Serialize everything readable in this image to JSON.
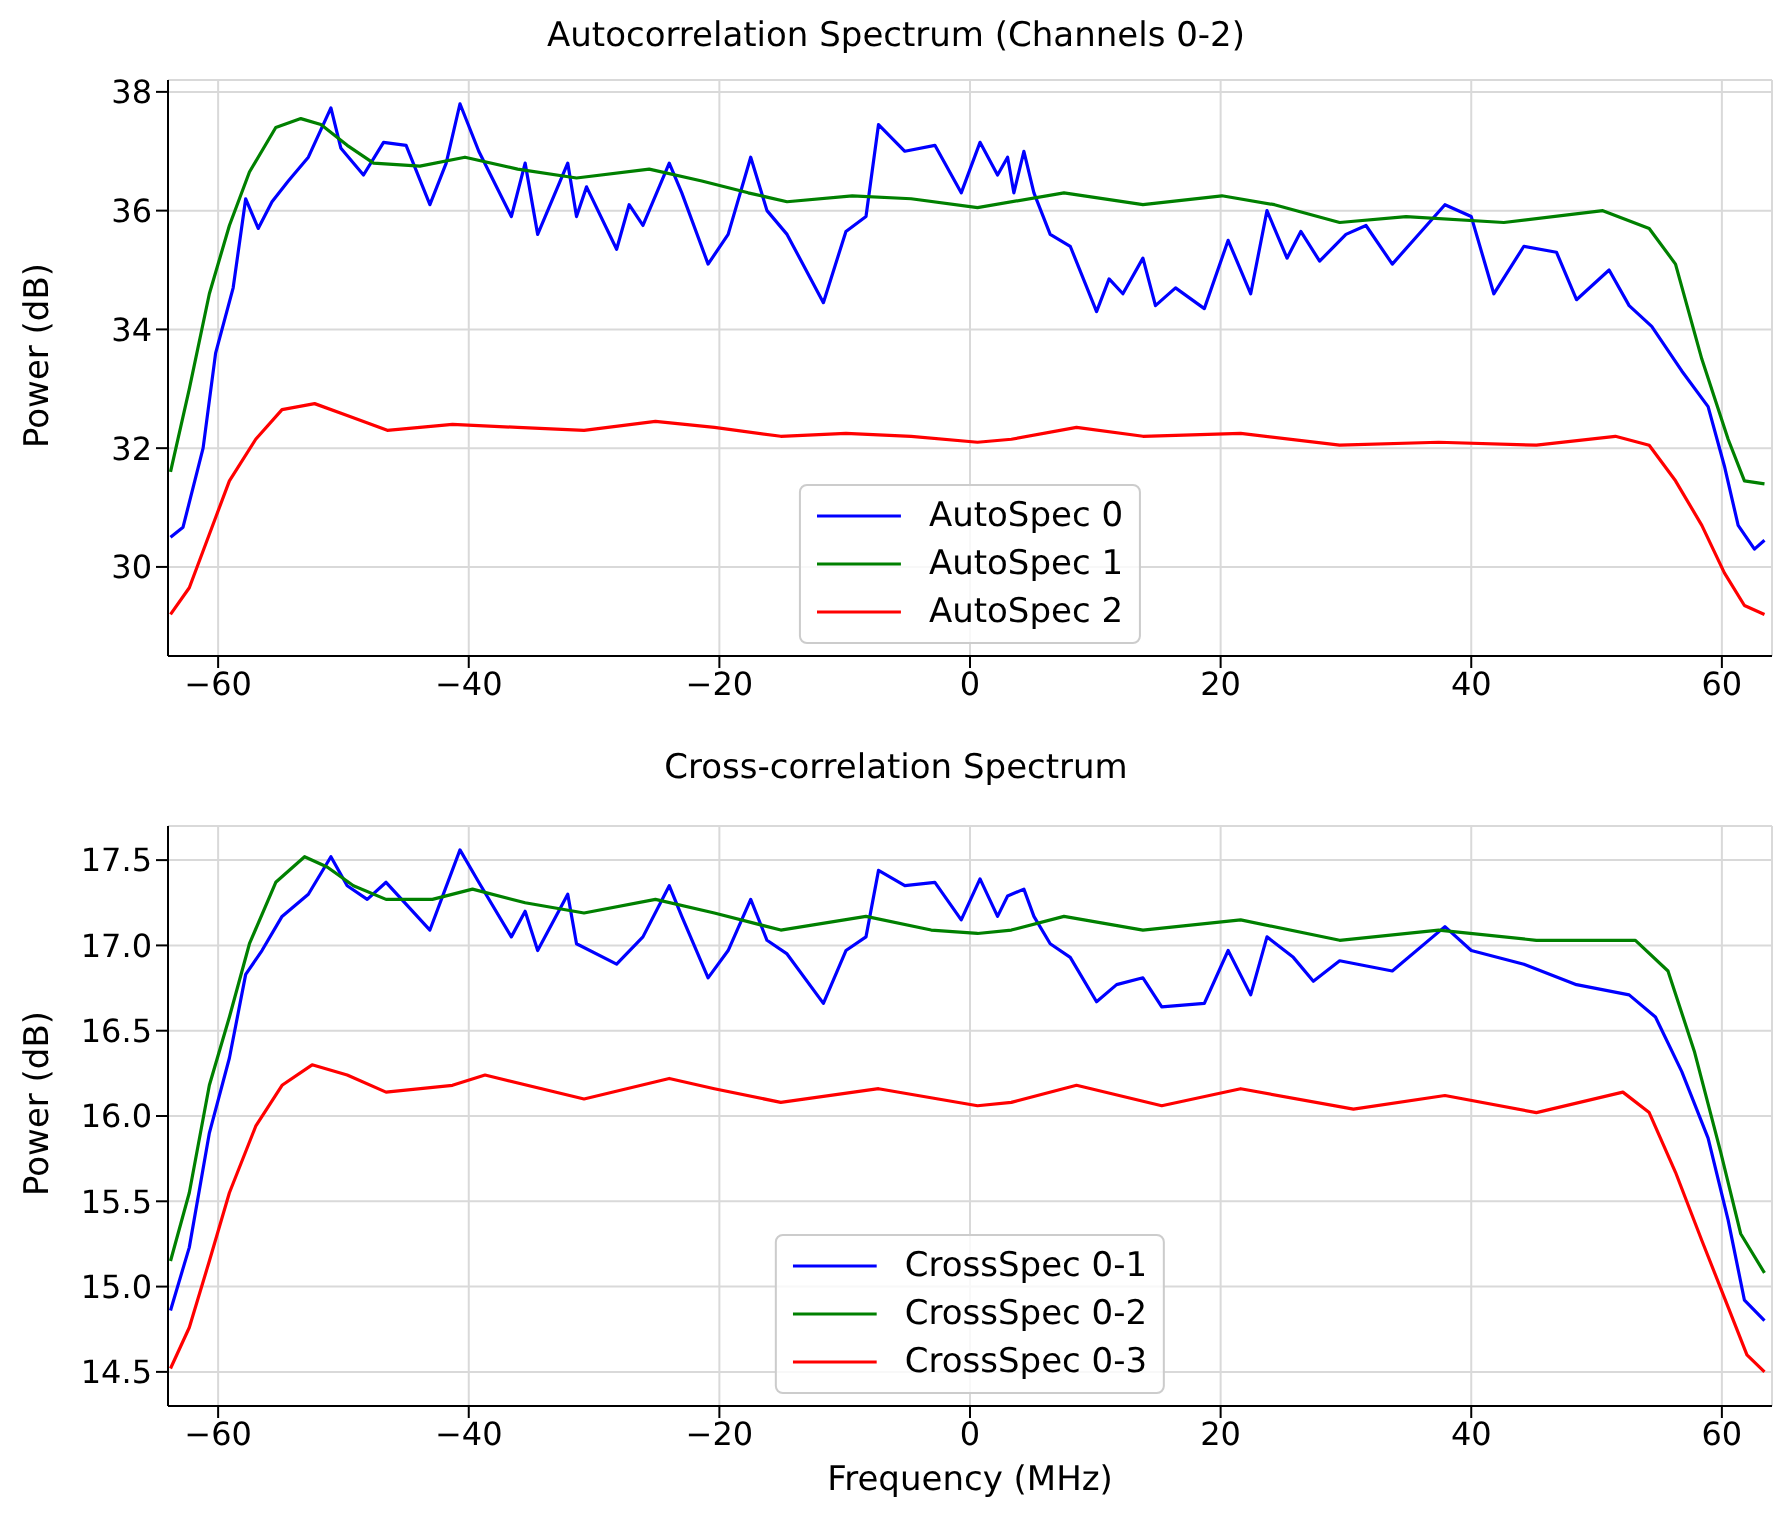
{
  "chart_data": [
    {
      "type": "line",
      "title": "Autocorrelation Spectrum (Channels 0-2)",
      "ylabel": "Power (dB)",
      "xlim": [
        -64,
        64
      ],
      "xticks": [
        {
          "value": -60,
          "label": "−60"
        },
        {
          "value": -40,
          "label": "−40"
        },
        {
          "value": -20,
          "label": "−20"
        },
        0,
        20,
        40,
        60
      ],
      "ylim": [
        28.5,
        38.2
      ],
      "yticks": [
        30,
        32,
        34,
        36,
        38
      ],
      "grid": true,
      "legend": "bottom",
      "line_style": "solid",
      "series": [
        {
          "name": "AutoSpec 0",
          "color": "#0000ff",
          "x": [
            -63.8,
            -62.8,
            -61.2,
            -60.2,
            -58.8,
            -57.8,
            -56.8,
            -55.7,
            -54.4,
            -52.8,
            -51.0,
            -50.2,
            -48.4,
            -46.8,
            -45.0,
            -43.1,
            -41.8,
            -40.7,
            -39.2,
            -36.6,
            -35.5,
            -34.5,
            -32.1,
            -31.4,
            -30.6,
            -28.2,
            -27.2,
            -26.1,
            -24.0,
            -23.0,
            -20.9,
            -19.3,
            -17.5,
            -16.2,
            -14.6,
            -11.7,
            -9.9,
            -8.3,
            -7.3,
            -5.2,
            -2.8,
            -0.7,
            0.8,
            2.2,
            3.0,
            3.5,
            4.3,
            5.1,
            6.4,
            8.0,
            10.1,
            11.1,
            12.2,
            13.8,
            14.8,
            16.4,
            18.7,
            20.6,
            22.4,
            23.7,
            25.3,
            26.4,
            27.9,
            30.0,
            31.6,
            33.7,
            37.9,
            40.0,
            41.8,
            44.2,
            46.8,
            48.4,
            51.0,
            52.6,
            54.4,
            56.8,
            58.9,
            60.2,
            61.3,
            62.6,
            63.4
          ],
          "values": [
            30.5,
            30.67,
            32.0,
            33.6,
            34.7,
            36.2,
            35.7,
            36.15,
            36.5,
            36.9,
            37.73,
            37.05,
            36.6,
            37.15,
            37.1,
            36.1,
            36.8,
            37.8,
            37.0,
            35.9,
            36.8,
            35.6,
            36.8,
            35.9,
            36.4,
            35.35,
            36.1,
            35.75,
            36.8,
            36.3,
            35.1,
            35.6,
            36.9,
            36.0,
            35.6,
            34.45,
            35.65,
            35.9,
            37.45,
            37.0,
            37.1,
            36.3,
            37.15,
            36.6,
            36.9,
            36.3,
            37.0,
            36.3,
            35.6,
            35.4,
            34.3,
            34.85,
            34.6,
            35.2,
            34.4,
            34.7,
            34.35,
            35.5,
            34.6,
            36.0,
            35.2,
            35.65,
            35.15,
            35.6,
            35.75,
            35.1,
            36.1,
            35.9,
            34.6,
            35.4,
            35.3,
            34.5,
            35.0,
            34.4,
            34.05,
            33.3,
            32.7,
            31.7,
            30.7,
            30.3,
            30.45
          ]
        },
        {
          "name": "AutoSpec 1",
          "color": "#008000",
          "x": [
            -63.8,
            -62.3,
            -60.7,
            -59.1,
            -57.5,
            -55.4,
            -53.4,
            -51.8,
            -49.7,
            -47.6,
            -43.9,
            -40.3,
            -36.1,
            -31.4,
            -25.6,
            -21.4,
            -17.7,
            -14.6,
            -9.4,
            -4.7,
            0.6,
            7.5,
            13.8,
            20.1,
            24.3,
            29.5,
            34.8,
            42.6,
            50.5,
            54.2,
            56.3,
            58.4,
            60.5,
            61.8,
            63.4
          ],
          "values": [
            31.6,
            33.0,
            34.6,
            35.75,
            36.65,
            37.4,
            37.55,
            37.45,
            37.1,
            36.8,
            36.75,
            36.9,
            36.7,
            36.55,
            36.7,
            36.5,
            36.3,
            36.15,
            36.25,
            36.2,
            36.05,
            36.3,
            36.1,
            36.25,
            36.1,
            35.8,
            35.9,
            35.8,
            36.0,
            35.7,
            35.1,
            33.5,
            32.15,
            31.45,
            31.4
          ]
        },
        {
          "name": "AutoSpec 2",
          "color": "#ff0000",
          "x": [
            -63.8,
            -62.3,
            -60.7,
            -59.1,
            -57.0,
            -54.9,
            -52.3,
            -49.7,
            -46.5,
            -41.3,
            -36.1,
            -30.8,
            -25.1,
            -20.4,
            -15.1,
            -9.9,
            -4.7,
            0.6,
            3.3,
            8.5,
            13.8,
            21.6,
            29.5,
            37.4,
            45.2,
            51.5,
            54.2,
            56.3,
            58.4,
            60.2,
            61.8,
            63.4
          ],
          "values": [
            29.2,
            29.65,
            30.55,
            31.45,
            32.15,
            32.65,
            32.75,
            32.55,
            32.3,
            32.4,
            32.35,
            32.3,
            32.45,
            32.35,
            32.2,
            32.25,
            32.2,
            32.1,
            32.15,
            32.35,
            32.2,
            32.25,
            32.05,
            32.1,
            32.05,
            32.2,
            32.05,
            31.45,
            30.7,
            29.9,
            29.35,
            29.2
          ]
        }
      ]
    },
    {
      "type": "line",
      "title": "Cross-correlation Spectrum",
      "xlabel": "Frequency (MHz)",
      "ylabel": "Power (dB)",
      "xlim": [
        -64,
        64
      ],
      "xticks": [
        {
          "value": -60,
          "label": "−60"
        },
        {
          "value": -40,
          "label": "−40"
        },
        {
          "value": -20,
          "label": "−20"
        },
        0,
        20,
        40,
        60
      ],
      "ylim": [
        14.3,
        17.7
      ],
      "yticks": [
        14.5,
        {
          "value": 15,
          "label": "15.0"
        },
        15.5,
        {
          "value": 16,
          "label": "16.0"
        },
        16.5,
        {
          "value": 17,
          "label": "17.0"
        },
        17.5
      ],
      "grid": true,
      "legend": "bottom",
      "line_style": "solid",
      "series": [
        {
          "name": "CrossSpec 0-1",
          "color": "#0000ff",
          "x": [
            -63.8,
            -62.3,
            -60.7,
            -59.1,
            -57.8,
            -56.5,
            -54.9,
            -52.8,
            -51.0,
            -49.7,
            -48.1,
            -46.6,
            -43.1,
            -40.7,
            -39.2,
            -36.6,
            -35.5,
            -34.5,
            -32.1,
            -31.4,
            -28.2,
            -26.1,
            -24.0,
            -23.0,
            -20.9,
            -19.3,
            -17.5,
            -16.2,
            -14.6,
            -11.7,
            -9.9,
            -8.3,
            -7.3,
            -5.2,
            -2.8,
            -0.7,
            0.8,
            2.2,
            3.0,
            4.3,
            5.1,
            6.4,
            8.0,
            10.1,
            11.7,
            13.8,
            15.3,
            18.7,
            20.6,
            22.4,
            23.7,
            25.8,
            27.4,
            29.5,
            33.7,
            37.9,
            40.0,
            44.2,
            48.4,
            52.6,
            54.7,
            56.8,
            58.9,
            60.5,
            61.8,
            63.4
          ],
          "values": [
            14.86,
            15.23,
            15.9,
            16.34,
            16.83,
            16.97,
            17.17,
            17.3,
            17.52,
            17.35,
            17.27,
            17.37,
            17.09,
            17.56,
            17.37,
            17.05,
            17.2,
            16.97,
            17.3,
            17.01,
            16.89,
            17.05,
            17.35,
            17.17,
            16.81,
            16.97,
            17.27,
            17.03,
            16.95,
            16.66,
            16.97,
            17.05,
            17.44,
            17.35,
            17.37,
            17.15,
            17.39,
            17.17,
            17.29,
            17.33,
            17.17,
            17.01,
            16.93,
            16.67,
            16.77,
            16.81,
            16.64,
            16.66,
            16.97,
            16.71,
            17.05,
            16.93,
            16.79,
            16.91,
            16.85,
            17.11,
            16.97,
            16.89,
            16.77,
            16.71,
            16.58,
            16.26,
            15.87,
            15.39,
            14.92,
            14.8
          ]
        },
        {
          "name": "CrossSpec 0-2",
          "color": "#008000",
          "x": [
            -63.8,
            -62.3,
            -60.7,
            -59.1,
            -57.5,
            -55.4,
            -53.1,
            -51.3,
            -49.2,
            -46.6,
            -42.9,
            -39.7,
            -35.5,
            -30.8,
            -25.1,
            -20.4,
            -15.1,
            -8.3,
            -3.1,
            0.6,
            3.3,
            7.5,
            13.8,
            21.6,
            29.5,
            37.4,
            45.2,
            53.1,
            55.7,
            57.8,
            59.9,
            61.5,
            63.4
          ],
          "values": [
            15.15,
            15.55,
            16.18,
            16.58,
            17.01,
            17.37,
            17.52,
            17.46,
            17.35,
            17.27,
            17.27,
            17.33,
            17.25,
            17.19,
            17.27,
            17.19,
            17.09,
            17.17,
            17.09,
            17.07,
            17.09,
            17.17,
            17.09,
            17.15,
            17.03,
            17.09,
            17.03,
            17.03,
            16.85,
            16.38,
            15.79,
            15.31,
            15.08
          ]
        },
        {
          "name": "CrossSpec 0-3",
          "color": "#ff0000",
          "x": [
            -63.8,
            -62.3,
            -60.7,
            -59.1,
            -57.0,
            -54.9,
            -52.5,
            -49.7,
            -46.6,
            -41.3,
            -38.7,
            -30.8,
            -24.0,
            -20.4,
            -15.1,
            -7.3,
            0.6,
            3.3,
            8.5,
            15.3,
            21.6,
            30.6,
            37.9,
            45.2,
            52.1,
            54.2,
            56.3,
            58.4,
            60.5,
            62.0,
            63.4
          ],
          "values": [
            14.52,
            14.76,
            15.15,
            15.55,
            15.94,
            16.18,
            16.3,
            16.24,
            16.14,
            16.18,
            16.24,
            16.1,
            16.22,
            16.16,
            16.08,
            16.16,
            16.06,
            16.08,
            16.18,
            16.06,
            16.16,
            16.04,
            16.12,
            16.02,
            16.14,
            16.02,
            15.67,
            15.27,
            14.88,
            14.6,
            14.5
          ]
        }
      ]
    }
  ]
}
